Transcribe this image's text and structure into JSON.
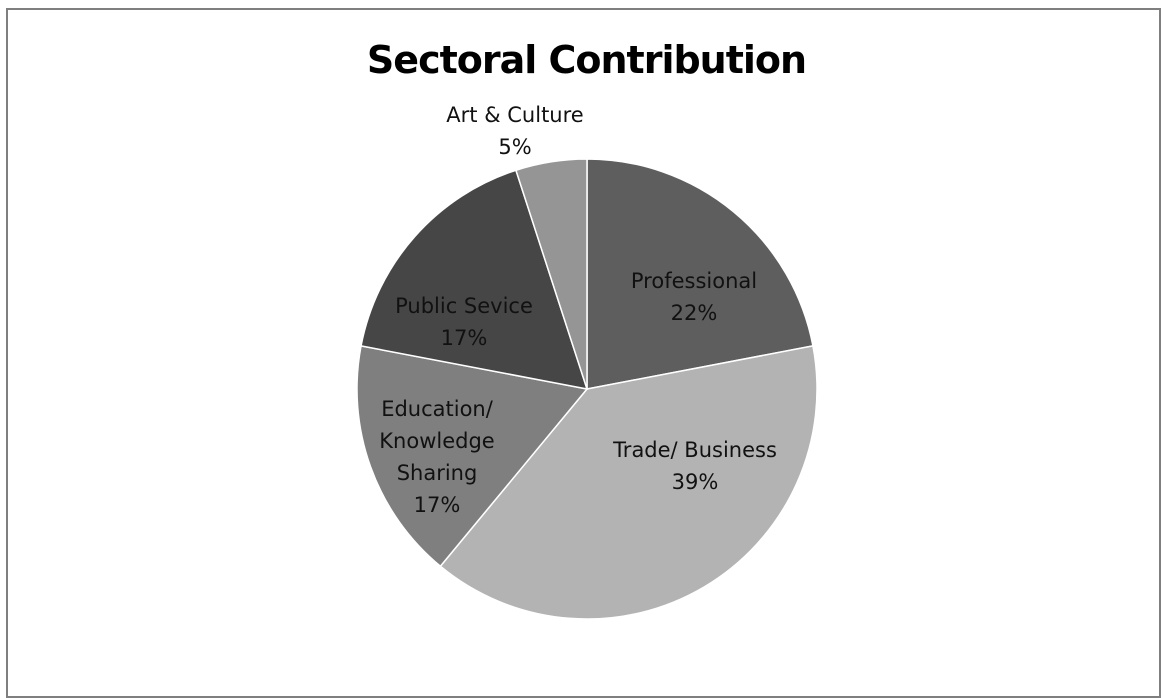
{
  "chart_data": {
    "type": "pie",
    "title": "Sectoral Contribution",
    "slices": [
      {
        "name": "Professional",
        "name_lines": [
          "Professional"
        ],
        "value": 22,
        "label": "22%",
        "color": "#5e5e5e"
      },
      {
        "name": "Trade/ Business",
        "name_lines": [
          "Trade/ Business"
        ],
        "value": 39,
        "label": "39%",
        "color": "#b3b3b3"
      },
      {
        "name": "Education/ Knowledge Sharing",
        "name_lines": [
          "Education/",
          "Knowledge",
          "Sharing"
        ],
        "value": 17,
        "label": "17%",
        "color": "#7f7f7f"
      },
      {
        "name": "Public Sevice",
        "name_lines": [
          "Public Sevice"
        ],
        "value": 17,
        "label": "17%",
        "color": "#464646"
      },
      {
        "name": "Art & Culture",
        "name_lines": [
          "Art & Culture"
        ],
        "value": 5,
        "label": "5%",
        "color": "#959595"
      }
    ],
    "start": "12 o'clock",
    "direction": "clockwise",
    "legend": "none"
  }
}
